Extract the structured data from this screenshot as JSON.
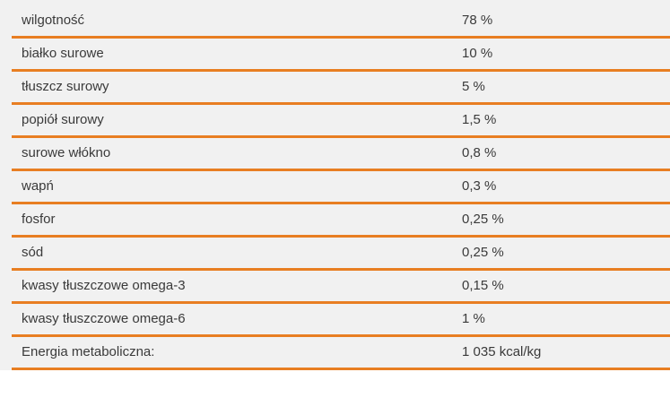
{
  "table": {
    "rows": [
      {
        "label": "wilgotność",
        "value": "78 %"
      },
      {
        "label": "białko surowe",
        "value": "10 %"
      },
      {
        "label": "tłuszcz surowy",
        "value": "5 %"
      },
      {
        "label": "popiół surowy",
        "value": "1,5 %"
      },
      {
        "label": "surowe włókno",
        "value": "0,8 %"
      },
      {
        "label": "wapń",
        "value": "0,3 %"
      },
      {
        "label": "fosfor",
        "value": "0,25 %"
      },
      {
        "label": "sód",
        "value": "0,25 %"
      },
      {
        "label": "kwasy tłuszczowe omega-3",
        "value": "0,15 %"
      },
      {
        "label": "kwasy tłuszczowe omega-6",
        "value": "1 %"
      },
      {
        "label": "Energia metaboliczna:",
        "value": "1 035 kcal/kg"
      }
    ],
    "colors": {
      "separator": "#e87e22",
      "panel_background": "#f1f1f1",
      "text": "#3a3a3a",
      "page_background": "#ffffff"
    }
  }
}
